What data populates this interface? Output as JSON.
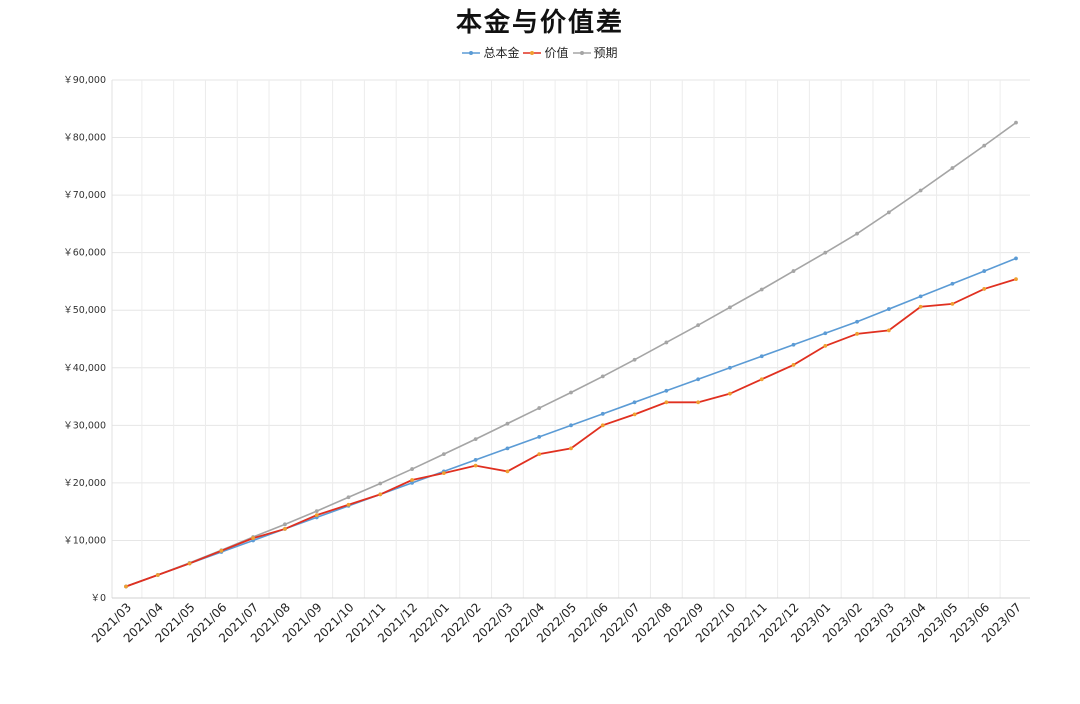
{
  "chart_data": {
    "type": "line",
    "title": "本金与价值差",
    "xlabel": "",
    "ylabel": "",
    "ylim": [
      0,
      90000
    ],
    "yticks": [
      0,
      10000,
      20000,
      30000,
      40000,
      50000,
      60000,
      70000,
      80000,
      90000
    ],
    "ytick_labels": [
      "￥0",
      "￥10,000",
      "￥20,000",
      "￥30,000",
      "￥40,000",
      "￥50,000",
      "￥60,000",
      "￥70,000",
      "￥80,000",
      "￥90,000"
    ],
    "x_tick_labels": [
      "2021/03",
      "2021/04",
      "2021/05",
      "2021/06",
      "2021/07",
      "2021/08",
      "2021/09",
      "2021/10",
      "2021/11",
      "2021/12",
      "2022/01",
      "2022/02",
      "2022/03",
      "2022/04",
      "2022/05",
      "2022/06",
      "2022/07",
      "2022/08",
      "2022/09",
      "2022/10",
      "2022/11",
      "2022/12",
      "2023/01",
      "2023/02",
      "2023/03",
      "2023/04",
      "2023/05",
      "2023/06",
      "2023/07"
    ],
    "grid": true,
    "legend_position": "top-center",
    "series": [
      {
        "name": "总本金",
        "color": "#5b9bd5",
        "values": [
          2000,
          4000,
          6000,
          8000,
          10000,
          12000,
          14000,
          16000,
          18000,
          20000,
          22000,
          24000,
          26000,
          28000,
          30000,
          32000,
          34000,
          36000,
          38000,
          40000,
          42000,
          44000,
          46000,
          48000,
          50200,
          52400,
          54600,
          56800,
          59000
        ]
      },
      {
        "name": "价值",
        "color": "#e03020",
        "marker_color": "#f0a030",
        "values": [
          2000,
          4000,
          6000,
          8200,
          10400,
          12000,
          14400,
          16200,
          18000,
          20500,
          21700,
          23000,
          22000,
          25000,
          26000,
          30000,
          31900,
          34000,
          34000,
          35500,
          38000,
          40500,
          43800,
          45900,
          46500,
          50600,
          51100,
          53700,
          55400
        ]
      },
      {
        "name": "预期",
        "color": "#a5a5a5",
        "values": [
          2000,
          4000,
          6100,
          8300,
          10600,
          12800,
          15100,
          17500,
          19900,
          22400,
          25000,
          27600,
          30300,
          33000,
          35700,
          38500,
          41400,
          44400,
          47400,
          50500,
          53600,
          56800,
          60000,
          63300,
          67000,
          70800,
          74700,
          78600,
          82600
        ]
      }
    ]
  }
}
